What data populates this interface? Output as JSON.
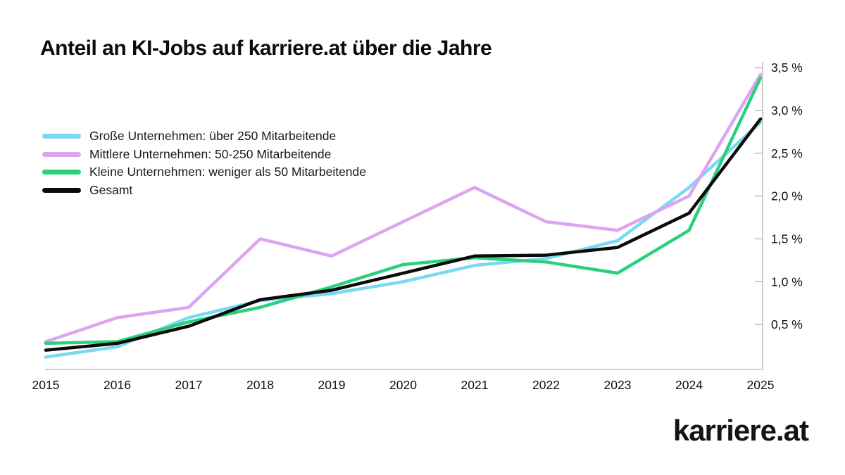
{
  "title": "Anteil an KI-Jobs auf karriere.at über die Jahre",
  "brand": {
    "logo_text": "karriere.at"
  },
  "chart_data": {
    "type": "line",
    "title": "Anteil an KI-Jobs auf karriere.at über die Jahre",
    "x": [
      "2015",
      "2016",
      "2017",
      "2018",
      "2019",
      "2020",
      "2021",
      "2022",
      "2023",
      "2024",
      "2025"
    ],
    "series": [
      {
        "name": "Große Unternehmen: über 250 Mitarbeitende",
        "color": "#7ad9f2",
        "values": [
          0.12,
          0.24,
          0.58,
          0.78,
          0.86,
          1.0,
          1.19,
          1.27,
          1.48,
          2.1,
          2.86
        ]
      },
      {
        "name": "Mittlere Unternehmen: 50-250 Mitarbeitende",
        "color": "#dda4f2",
        "values": [
          0.3,
          0.58,
          0.7,
          1.5,
          1.3,
          1.7,
          2.1,
          1.7,
          1.6,
          2.0,
          3.42
        ]
      },
      {
        "name": "Kleine Unternehmen: weniger als 50 Mitarbeitende",
        "color": "#2bd07c",
        "values": [
          0.28,
          0.3,
          0.53,
          0.7,
          0.94,
          1.2,
          1.28,
          1.23,
          1.1,
          1.6,
          3.38
        ]
      },
      {
        "name": "Gesamt",
        "color": "#0b0b0b",
        "values": [
          0.2,
          0.28,
          0.48,
          0.79,
          0.9,
          1.1,
          1.3,
          1.31,
          1.4,
          1.8,
          2.9
        ]
      }
    ],
    "yticks": [
      {
        "value": 0.5,
        "label": "0,5 %"
      },
      {
        "value": 1.0,
        "label": "1,0 %"
      },
      {
        "value": 1.5,
        "label": "1,5 %"
      },
      {
        "value": 2.0,
        "label": "2,0 %"
      },
      {
        "value": 2.5,
        "label": "2,5 %"
      },
      {
        "value": 3.0,
        "label": "3,0 %"
      },
      {
        "value": 3.5,
        "label": "3,5 %"
      }
    ],
    "ylim": [
      0,
      3.6
    ],
    "grid": false,
    "legend_position": "top-left",
    "axis_color": "#b3b3b3"
  }
}
